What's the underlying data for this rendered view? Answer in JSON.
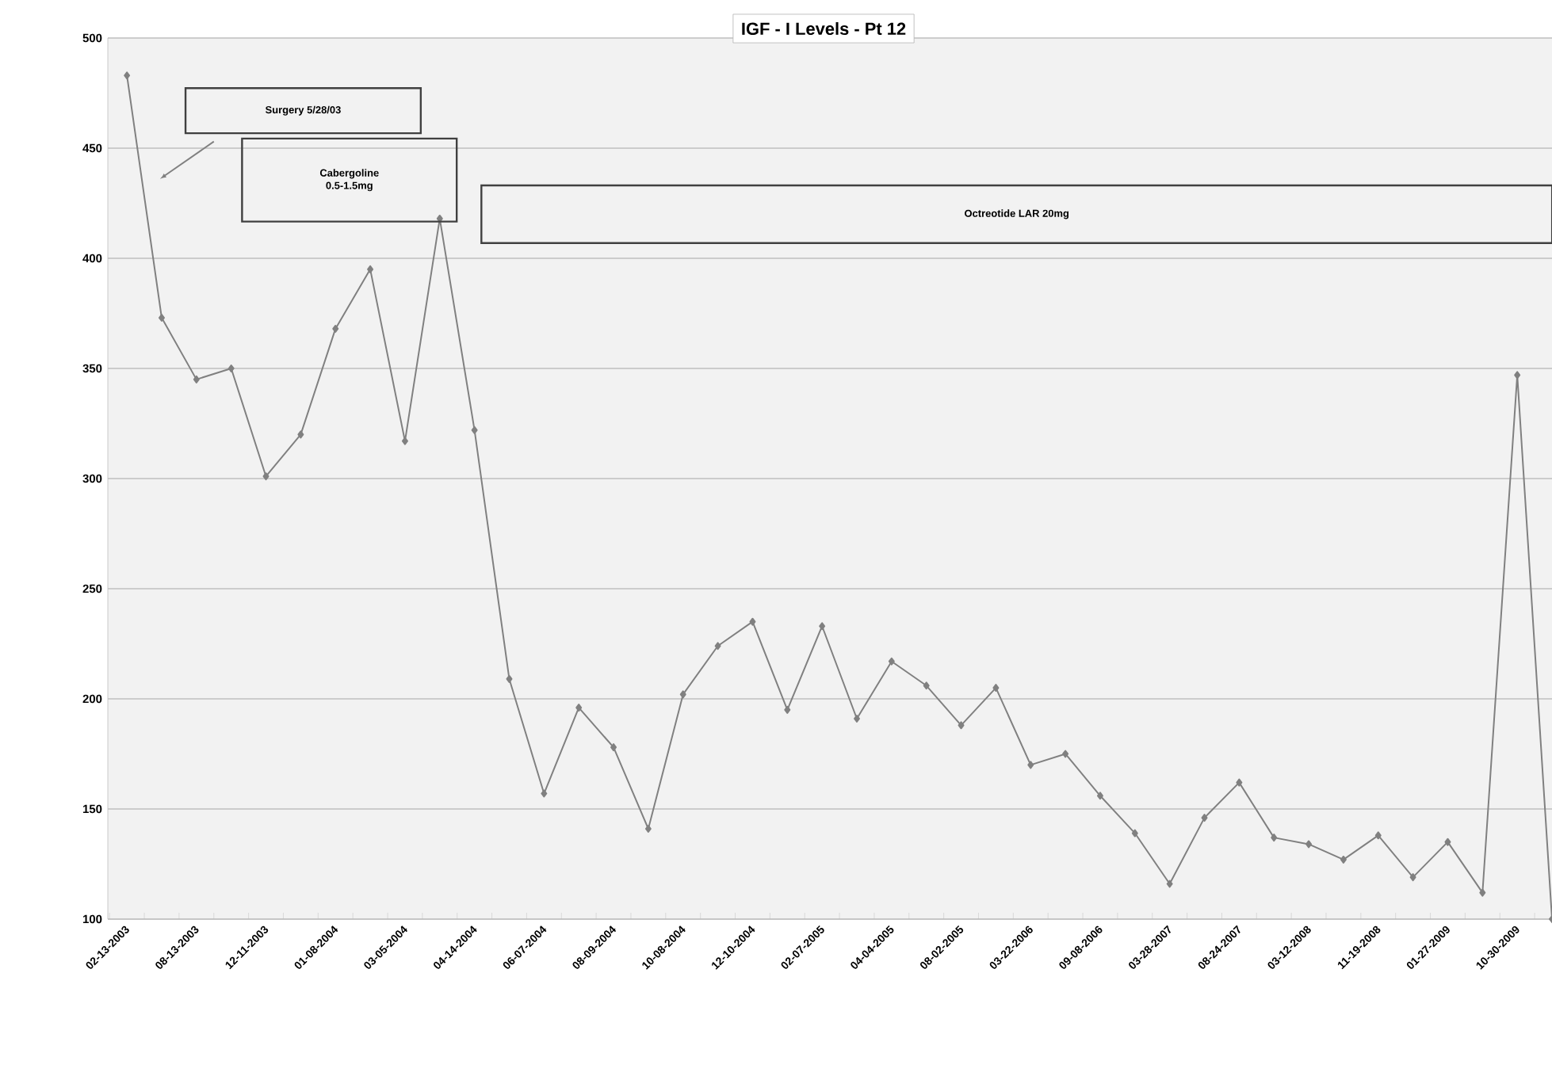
{
  "chart_data": {
    "type": "line",
    "title": "IGF - I Levels - Pt 12",
    "annotations": [
      "Surgery 5/28/03",
      "Cabergoline 0.5-1.5mg",
      "Octreotide LAR 20mg"
    ],
    "categories": [
      "02-13-2003",
      null,
      "08-13-2003",
      null,
      "12-11-2003",
      null,
      "01-08-2004",
      null,
      "03-05-2004",
      null,
      "04-14-2004",
      null,
      "06-07-2004",
      null,
      "08-09-2004",
      null,
      "10-08-2004",
      null,
      "12-10-2004",
      null,
      "02-07-2005",
      null,
      "04-04-2005",
      null,
      "08-02-2005",
      null,
      "03-22-2006",
      null,
      "09-08-2006",
      null,
      "03-28-2007",
      null,
      "08-24-2007",
      null,
      "03-12-2008",
      null,
      "11-19-2008",
      null,
      "01-27-2009",
      null,
      "10-30-2009",
      null
    ],
    "series": [
      {
        "color": "#808080",
        "values": [
          483,
          373,
          345,
          350,
          301,
          320,
          368,
          395,
          317,
          418,
          322,
          209,
          157,
          196,
          178,
          141,
          202,
          224,
          235,
          195,
          233,
          191,
          217,
          206,
          188,
          205,
          170,
          175,
          156,
          139,
          116,
          146,
          162,
          137,
          134,
          127,
          138,
          119,
          135,
          112,
          347,
          100
        ]
      }
    ],
    "ylim": [
      100,
      500
    ],
    "yticks": [
      100,
      150,
      200,
      250,
      300,
      350,
      400,
      450,
      500
    ],
    "grid": "y",
    "marker": "diamond",
    "line_style": "solid"
  }
}
